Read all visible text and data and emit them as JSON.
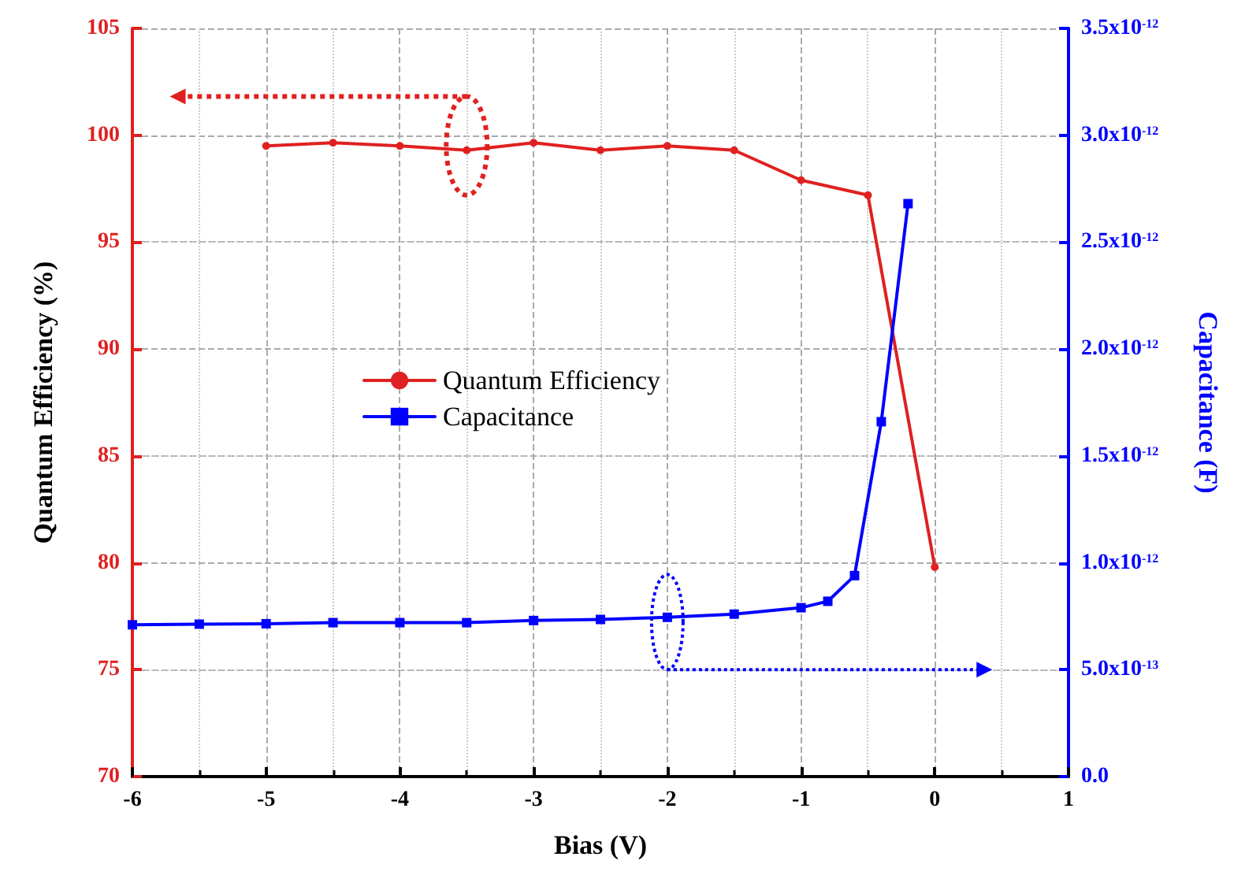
{
  "chart_data": {
    "type": "line",
    "xlabel": "Bias (V)",
    "ylabel": "Quantum Efficiency (%)",
    "y2label": "Capacitance (F)",
    "xlim": [
      -6,
      1
    ],
    "xticks": [
      -6,
      -5,
      -4,
      -3,
      -2,
      -1,
      0,
      1
    ],
    "ylim": [
      70,
      105
    ],
    "yticks": [
      70,
      75,
      80,
      85,
      90,
      95,
      100,
      105
    ],
    "y2lim": [
      0,
      3.5e-12
    ],
    "y2ticks": [
      {
        "value": 0,
        "label": "0.0"
      },
      {
        "value": 5e-13,
        "label": "5.0x10$^{-13}$"
      },
      {
        "value": 1e-12,
        "label": "1.0x10$^{-12}$"
      },
      {
        "value": 1.5e-12,
        "label": "1.5x10$^{-12}$"
      },
      {
        "value": 2e-12,
        "label": "2.0x10$^{-12}$"
      },
      {
        "value": 2.5e-12,
        "label": "2.5x10$^{-12}$"
      },
      {
        "value": 3e-12,
        "label": "3.0x10$^{-12}$"
      },
      {
        "value": 3.5e-12,
        "label": "3.5x10$^{-12}$"
      }
    ],
    "grid": true,
    "legend": "left",
    "line_style": "solid",
    "series": [
      {
        "name": "Quantum Efficiency",
        "color": "#e02020",
        "marker": "circle",
        "x": [
          -5,
          -4.5,
          -4,
          -3.5,
          -3,
          -2.5,
          -2,
          -1.5,
          -1,
          -0.5,
          0
        ],
        "values": [
          99.5,
          99.65,
          99.5,
          99.3,
          99.65,
          99.3,
          99.5,
          99.3,
          97.9,
          97.2,
          79.8
        ]
      },
      {
        "name": "Capacitance",
        "color": "#0000ff",
        "marker": "square",
        "axis": "y2",
        "x": [
          -6,
          -5.5,
          -5,
          -4.5,
          -4,
          -3.5,
          -3,
          -2.5,
          -2,
          -1.5,
          -1,
          -0.8,
          -0.6,
          -0.4,
          -0.2
        ],
        "values": [
          7.1e-13,
          7.13e-13,
          7.15e-13,
          7.2e-13,
          7.2e-13,
          7.2e-13,
          7.3e-13,
          7.35e-13,
          7.45e-13,
          7.6e-13,
          7.9e-13,
          8.2e-13,
          9.4e-13,
          1.66e-12,
          2.68e-12
        ]
      }
    ]
  }
}
